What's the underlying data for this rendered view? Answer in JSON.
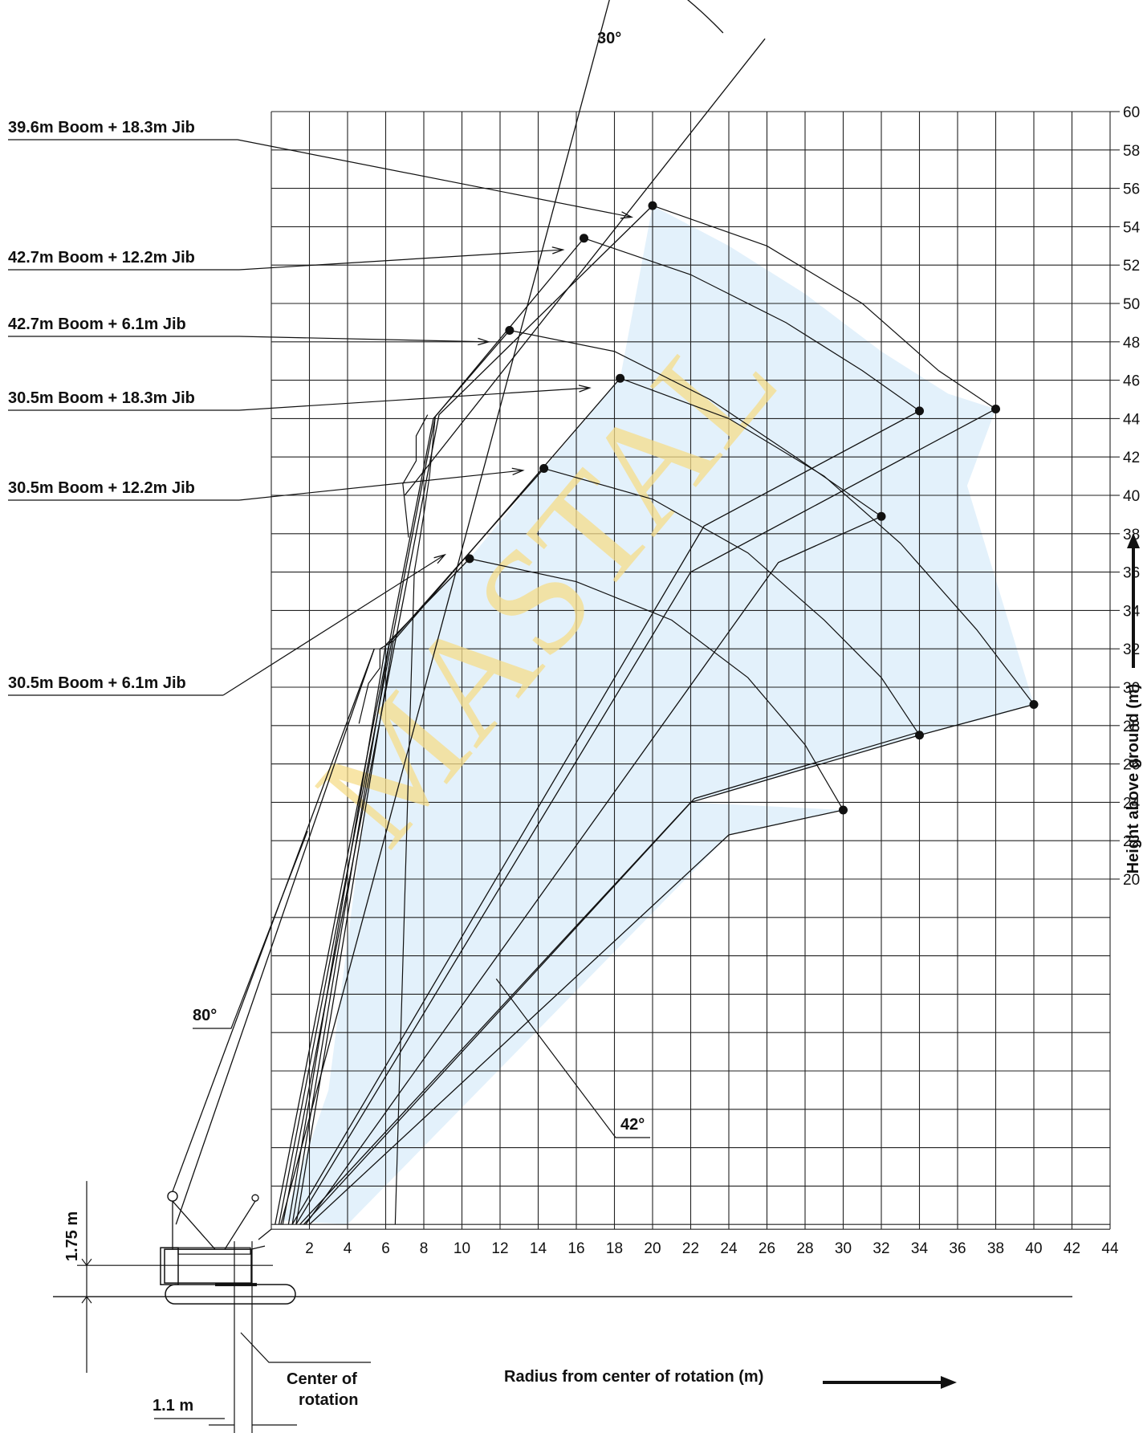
{
  "chart_data": {
    "type": "working-range-diagram",
    "x_axis": {
      "label": "Radius from center of rotation (m)",
      "ticks": [
        2,
        4,
        6,
        8,
        10,
        12,
        14,
        16,
        18,
        20,
        22,
        24,
        26,
        28,
        30,
        32,
        34,
        36,
        38,
        40,
        42,
        44
      ]
    },
    "y_axis": {
      "label": "Height above ground (m)",
      "ticks": [
        20,
        22,
        24,
        26,
        28,
        30,
        32,
        34,
        36,
        38,
        40,
        42,
        44,
        46,
        48,
        50,
        52,
        54,
        56,
        58,
        60
      ]
    },
    "grid": true,
    "configurations": [
      {
        "name": "39.6m  Boom + 18.3m Jib",
        "max_height_point": [
          20,
          55.1
        ],
        "max_radius_point": [
          38,
          44.5
        ]
      },
      {
        "name": "42.7m  Boom + 12.2m Jib",
        "max_height_point": [
          16.4,
          53.4
        ],
        "max_radius_point": [
          34,
          44.4
        ]
      },
      {
        "name": "42.7m  Boom + 6.1m Jib",
        "max_height_point": [
          12.5,
          48.6
        ]
      },
      {
        "name": "30.5m  Boom + 18.3m Jib",
        "max_height_point": [
          18.3,
          46.1
        ],
        "max_radius_point": [
          40,
          29.1
        ]
      },
      {
        "name": "30.5m  Boom + 12.2m Jib",
        "max_height_point": [
          14.3,
          41.4
        ],
        "max_radius_point": [
          34,
          27.5
        ]
      },
      {
        "name": "30.5m  Boom + 6.1m Jib",
        "max_height_point": [
          10.4,
          36.7
        ],
        "max_radius_point": [
          30,
          23.6
        ]
      }
    ],
    "extra_points": [
      [
        32,
        38.9
      ]
    ],
    "annotations": {
      "top_angle": "30°",
      "boom_angle_max": "80°",
      "boom_angle_min": "42°",
      "boom_foot_height": "1.75 m",
      "tail_offset": "1.1 m",
      "center_of_rotation": [
        "Center of",
        "rotation"
      ]
    },
    "watermark": "MASTAL",
    "colors": {
      "envelope_fill": "#e3f1fb",
      "lines": "#111111",
      "watermark": "#f5dc8a"
    }
  }
}
